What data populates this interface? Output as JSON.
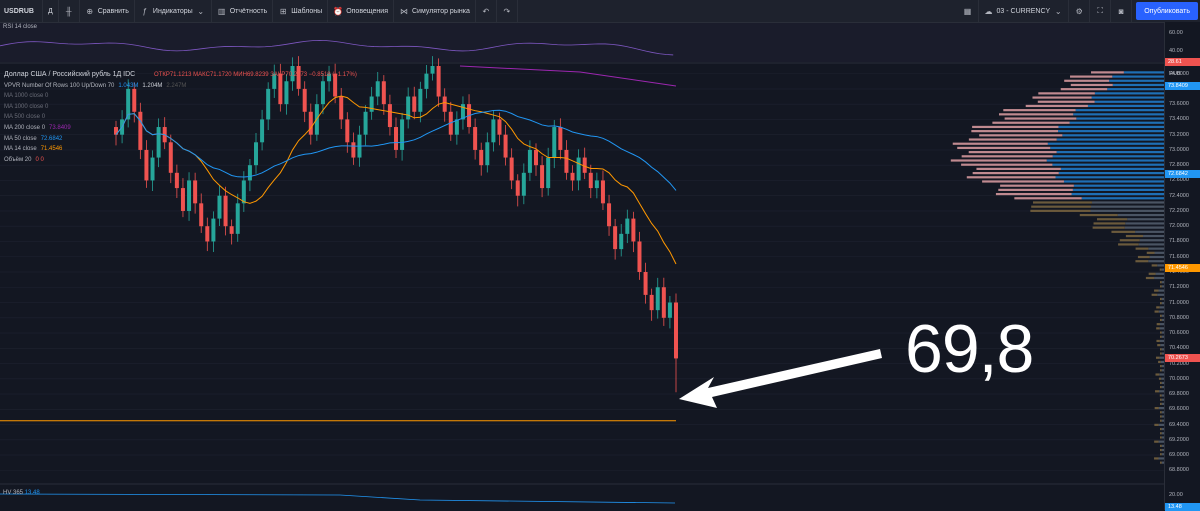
{
  "toolbar": {
    "symbol": "USDRUB",
    "interval": "Д",
    "compare": "Сравнить",
    "indicators": "Индикаторы",
    "reports": "Отчётность",
    "templates": "Шаблоны",
    "alerts": "Оповещения",
    "simulator": "Симулятор рынка",
    "layout": "03 - CURRENCY",
    "publish": "Опубликовать"
  },
  "legend": {
    "title": "Доллар США / Российский рубль  1Д  IDC",
    "ohlc": "ОТКР71.1213  МАКС71.1720  МИН69.8239  ЗАКР70.2673  −0.8518 (−1.17%)",
    "vpvr": "VPVR Number Of Rows 100 Up/Down 70",
    "vpvr_vals": [
      "1.043M",
      "1.204M",
      "2.247M"
    ],
    "lines": [
      {
        "label": "MA 1000 close 0",
        "value": ""
      },
      {
        "label": "MA 1000 close 0",
        "value": ""
      },
      {
        "label": "MA 500 close 0",
        "value": ""
      },
      {
        "label": "MA 200 close 0",
        "value": "73.8409"
      },
      {
        "label": "MA 50 close",
        "value": "72.6842"
      },
      {
        "label": "MA 14 close",
        "value": "71.4546"
      },
      {
        "label": "Объём 20",
        "value": "0  0"
      }
    ]
  },
  "rsi": {
    "label": "RSI 14 close",
    "value": "28.61",
    "ticks": [
      "60.00",
      "40.00"
    ]
  },
  "hv": {
    "label": "HV 365",
    "value": "13.48",
    "tick": "20.00"
  },
  "price_axis": {
    "ticks": [
      "74.0000",
      "73.8000",
      "73.6000",
      "73.4000",
      "73.2000",
      "73.0000",
      "72.8000",
      "72.6000",
      "72.4000",
      "72.2000",
      "72.0000",
      "71.8000",
      "71.6000",
      "71.4000",
      "71.2000",
      "71.0000",
      "70.8000",
      "70.6000",
      "70.4000",
      "70.2000",
      "70.0000",
      "69.8000",
      "69.6000",
      "69.4000",
      "69.2000",
      "69.0000",
      "68.8000"
    ],
    "unit": "RUB",
    "tags": [
      {
        "label": "73.8409",
        "price": 73.8409,
        "color": "#2196f3"
      },
      {
        "label": "72.6842",
        "price": 72.6842,
        "color": "#2196f3"
      },
      {
        "label": "71.4546",
        "price": 71.4546,
        "color": "#ff9800"
      },
      {
        "label": "70.2673",
        "price": 70.2673,
        "color": "#ef5350"
      }
    ]
  },
  "annotation": "69,8",
  "colors": {
    "up": "#26a69a",
    "down": "#ef5350",
    "ma14": "#ff9800",
    "ma50": "#2196f3",
    "ma200": "#9c27b0",
    "rsi": "#7e57c2",
    "hline": "#ff9800"
  },
  "chart_data": {
    "type": "line",
    "title": "Доллар США / Российский рубль",
    "xlabel": "",
    "ylabel": "",
    "ylim": [
      68.7,
      74.1
    ],
    "series": [
      {
        "name": "USDRUB",
        "type": "candlestick",
        "values": [
          73.2,
          73.4,
          73.8,
          73.5,
          73.0,
          72.6,
          72.9,
          73.3,
          73.1,
          72.7,
          72.5,
          72.2,
          72.6,
          72.3,
          72.0,
          71.8,
          72.1,
          72.4,
          72.0,
          71.9,
          72.3,
          72.6,
          72.8,
          73.1,
          73.4,
          73.8,
          74.0,
          73.6,
          73.9,
          74.1,
          73.8,
          73.5,
          73.2,
          73.6,
          73.9,
          74.0,
          73.7,
          73.4,
          73.1,
          72.9,
          73.2,
          73.5,
          73.7,
          73.9,
          73.6,
          73.3,
          73.0,
          73.4,
          73.7,
          73.5,
          73.8,
          74.0,
          74.1,
          73.7,
          73.5,
          73.2,
          73.4,
          73.6,
          73.3,
          73.0,
          72.8,
          73.1,
          73.4,
          73.2,
          72.9,
          72.6,
          72.4,
          72.7,
          73.0,
          72.8,
          72.5,
          72.9,
          73.3,
          73.0,
          72.7,
          72.6,
          72.9,
          72.7,
          72.5,
          72.6,
          72.3,
          72.0,
          71.7,
          71.9,
          72.1,
          71.8,
          71.4,
          71.1,
          70.9,
          71.2,
          70.8,
          71.0,
          70.2673
        ]
      }
    ],
    "ma14_label": "MA 14",
    "ma50_label": "MA 50",
    "ma200_label": "MA 200",
    "horizontal_line": 69.45
  }
}
